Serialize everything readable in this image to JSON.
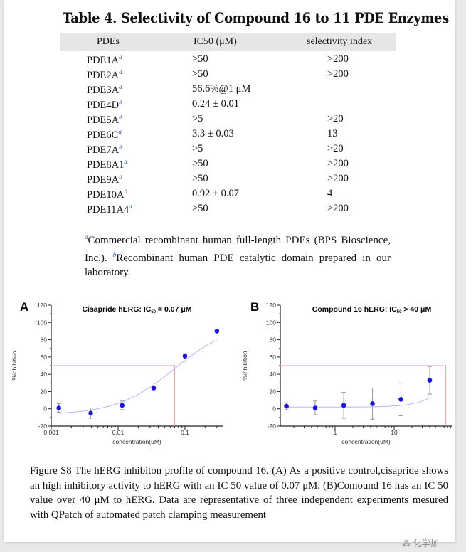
{
  "table": {
    "title": "Table 4. Selectivity of Compound 16 to 11 PDE Enzymes",
    "headers": [
      "PDEs",
      "IC50 (μM)",
      "selectivity index"
    ],
    "rows": [
      {
        "pde": "PDE1A",
        "note": "a",
        "ic50": ">50",
        "si": ">200"
      },
      {
        "pde": "PDE2A",
        "note": "a",
        "ic50": ">50",
        "si": ">200"
      },
      {
        "pde": "PDE3A",
        "note": "a",
        "ic50": "56.6%@1 μM",
        "si": ""
      },
      {
        "pde": "PDE4D",
        "note": "b",
        "ic50": "0.24 ± 0.01",
        "si": ""
      },
      {
        "pde": "PDE5A",
        "note": "b",
        "ic50": ">5",
        "si": ">20"
      },
      {
        "pde": "PDE6C",
        "note": "a",
        "ic50": "3.3 ± 0.03",
        "si": "13"
      },
      {
        "pde": "PDE7A",
        "note": "b",
        "ic50": ">5",
        "si": ">20"
      },
      {
        "pde": "PDE8A1",
        "note": "a",
        "ic50": ">50",
        "si": ">200"
      },
      {
        "pde": "PDE9A",
        "note": "b",
        "ic50": ">50",
        "si": ">200"
      },
      {
        "pde": "PDE10A",
        "note": "b",
        "ic50": "0.92 ± 0.07",
        "si": "4"
      },
      {
        "pde": "PDE11A4",
        "note": "a",
        "ic50": ">50",
        "si": ">200"
      }
    ],
    "footnote_a_mark": "a",
    "footnote_a": "Commercial recombinant human full-length PDEs (BPS Bioscience, Inc.).",
    "footnote_b_mark": "b",
    "footnote_b": "Recombinant human PDE catalytic domain prepared in our laboratory."
  },
  "chart_data": [
    {
      "type": "scatter",
      "panel": "A",
      "title": "Cisapride hERG: IC50 = 0.07 μM",
      "xlabel": "concentration(uM)",
      "ylabel": "%inhibition",
      "xscale": "log",
      "xlim": [
        0.001,
        0.35
      ],
      "ylim": [
        -20,
        120
      ],
      "xticks": [
        "0.001",
        "0.01",
        "0.1"
      ],
      "yticks": [
        -20,
        0,
        20,
        40,
        60,
        80,
        100,
        120
      ],
      "ic50": 0.07,
      "points": [
        {
          "x": 0.0013,
          "y": 1,
          "err": 5
        },
        {
          "x": 0.0039,
          "y": -5,
          "err": 6
        },
        {
          "x": 0.0115,
          "y": 4,
          "err": 5
        },
        {
          "x": 0.034,
          "y": 24,
          "err": 1
        },
        {
          "x": 0.1,
          "y": 61,
          "err": 3
        },
        {
          "x": 0.3,
          "y": 90,
          "err": 1
        }
      ],
      "colors": {
        "points": "#1a14e0",
        "fit": "#b8b8f0",
        "ic50_line": "#e8a0a0"
      }
    },
    {
      "type": "scatter",
      "panel": "B",
      "title": "Compound 16 hERG: IC50 > 40 μM",
      "xlabel": "concentration(uM)",
      "ylabel": "%inhibition",
      "xscale": "log",
      "xlim": [
        0.118,
        95
      ],
      "ylim": [
        -20,
        120
      ],
      "xticks": [
        "1",
        "10"
      ],
      "yticks": [
        -20,
        0,
        20,
        40,
        60,
        80,
        100,
        120
      ],
      "ic50_marker": 75,
      "points": [
        {
          "x": 0.15,
          "y": 3,
          "err": 4
        },
        {
          "x": 0.46,
          "y": 1,
          "err": 8
        },
        {
          "x": 1.4,
          "y": 4,
          "err": 15
        },
        {
          "x": 4.3,
          "y": 6,
          "err": 18
        },
        {
          "x": 13,
          "y": 11,
          "err": 19
        },
        {
          "x": 40,
          "y": 33,
          "err": 16
        }
      ],
      "colors": {
        "points": "#1a14e0",
        "fit": "#b8b8f0",
        "ic50_line": "#e8a0a0"
      }
    }
  ],
  "caption": "Figure S8 The hERG inhibiton profile of compound 16. (A) As a positive control,cisapride shows an high inhibitory activity to hERG with an IC 50 value of 0.07 μM. (B)Comound 16 has an IC 50 value over 40 μM to hERG. Data are representative of three independent experiments mesured with QPatch of automated patch clamping measurement",
  "watermark": "化学加"
}
